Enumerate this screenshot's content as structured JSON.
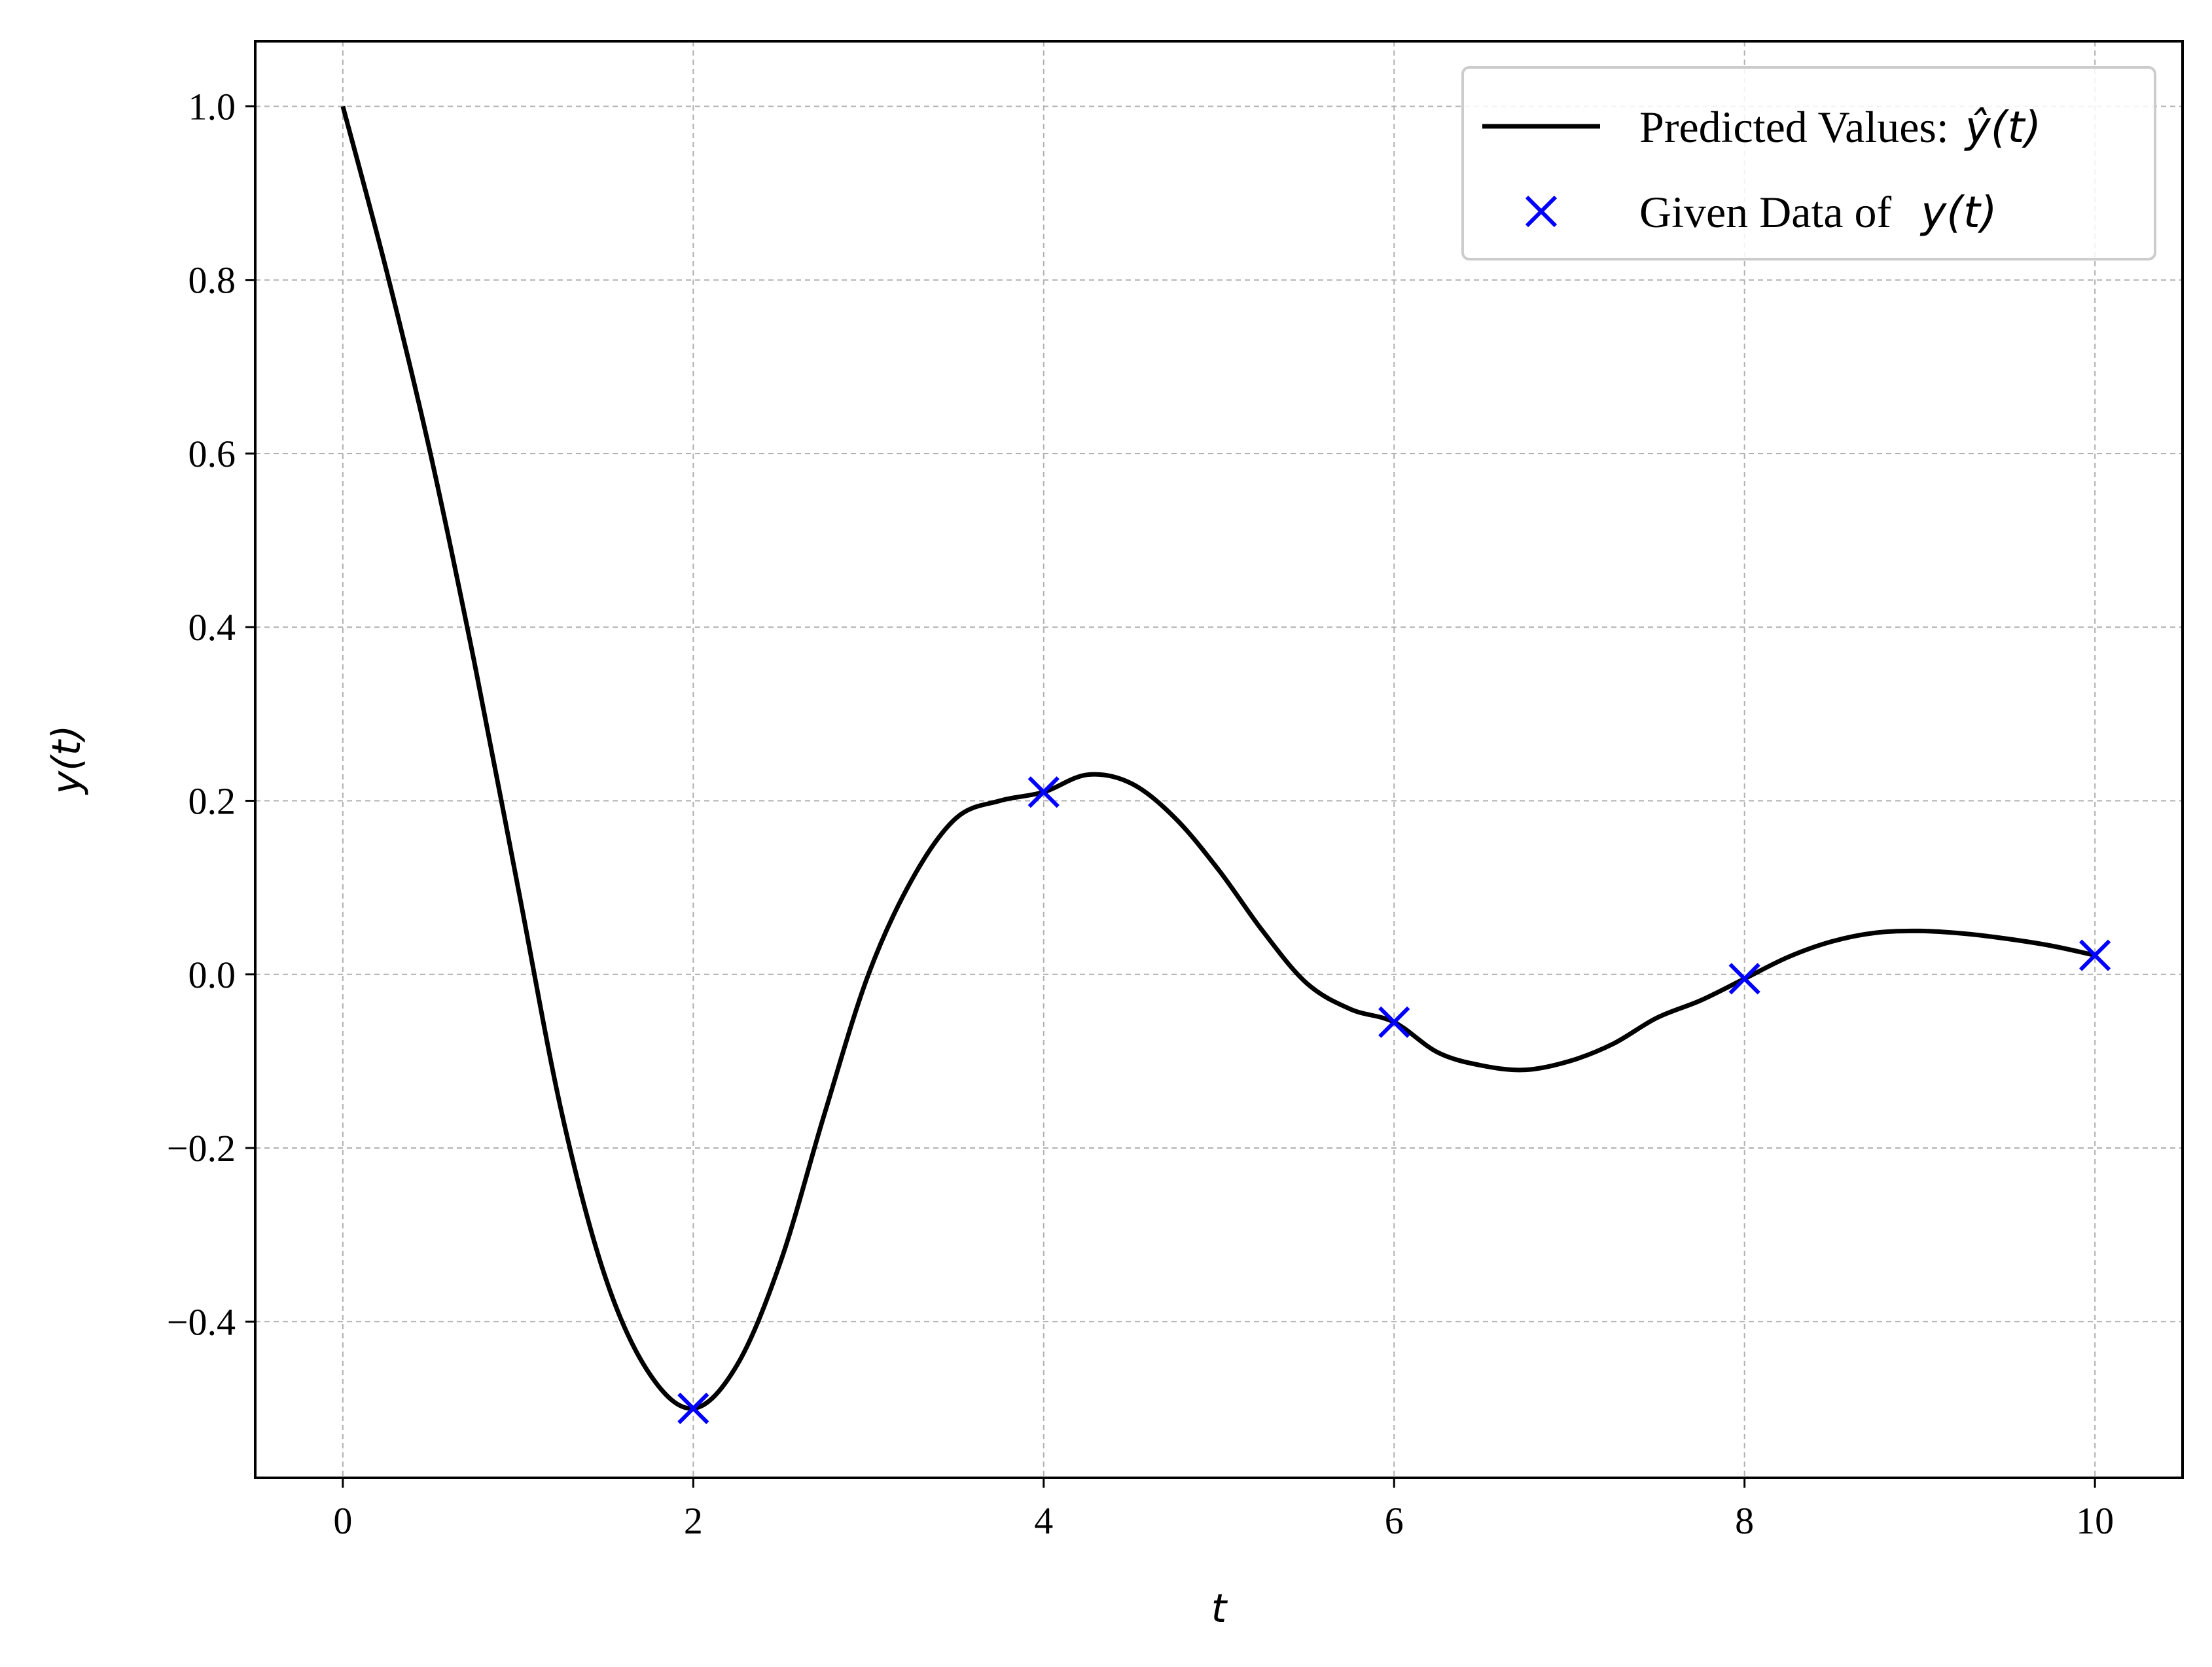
{
  "chart_data": {
    "type": "line",
    "xlabel": "t",
    "ylabel": "y(t)",
    "xlim": [
      -0.5,
      10.5
    ],
    "ylim": [
      -0.58,
      1.075
    ],
    "xticks": [
      0,
      2,
      4,
      6,
      8,
      10
    ],
    "xtick_labels": [
      "0",
      "2",
      "4",
      "6",
      "8",
      "10"
    ],
    "yticks": [
      -0.4,
      -0.2,
      0.0,
      0.2,
      0.4,
      0.6,
      0.8,
      1.0
    ],
    "ytick_labels": [
      "−0.4",
      "−0.2",
      "0.0",
      "0.2",
      "0.4",
      "0.6",
      "0.8",
      "1.0"
    ],
    "grid": true,
    "legend_position": "top-right",
    "series": [
      {
        "name": "Predicted Values: ŷ(t)",
        "legend_text": "Predicted Values: ",
        "legend_math": "ŷ(t)",
        "kind": "line",
        "color": "#000000",
        "x": [
          0.0,
          0.25,
          0.5,
          0.75,
          1.0,
          1.25,
          1.5,
          1.75,
          2.0,
          2.25,
          2.5,
          2.75,
          3.0,
          3.25,
          3.5,
          3.75,
          4.0,
          4.25,
          4.5,
          4.75,
          5.0,
          5.25,
          5.5,
          5.75,
          6.0,
          6.25,
          6.5,
          6.75,
          7.0,
          7.25,
          7.5,
          7.75,
          8.0,
          8.25,
          8.5,
          8.75,
          9.0,
          9.25,
          9.5,
          9.75,
          10.0
        ],
        "y": [
          1.0,
          0.81,
          0.6,
          0.36,
          0.1,
          -0.16,
          -0.35,
          -0.46,
          -0.5,
          -0.45,
          -0.33,
          -0.16,
          0.0,
          0.11,
          0.18,
          0.2,
          0.21,
          0.23,
          0.22,
          0.18,
          0.12,
          0.05,
          -0.01,
          -0.04,
          -0.055,
          -0.09,
          -0.105,
          -0.11,
          -0.1,
          -0.08,
          -0.05,
          -0.03,
          -0.005,
          0.02,
          0.038,
          0.048,
          0.05,
          0.047,
          0.041,
          0.033,
          0.022
        ]
      },
      {
        "name": "Given Data of  y(t)",
        "legend_text": "Given Data of ",
        "legend_math": "y(t)",
        "kind": "scatter",
        "marker": "x",
        "color": "#0000ff",
        "x": [
          2,
          4,
          6,
          8,
          10
        ],
        "y": [
          -0.5,
          0.21,
          -0.055,
          -0.005,
          0.022
        ]
      }
    ]
  }
}
